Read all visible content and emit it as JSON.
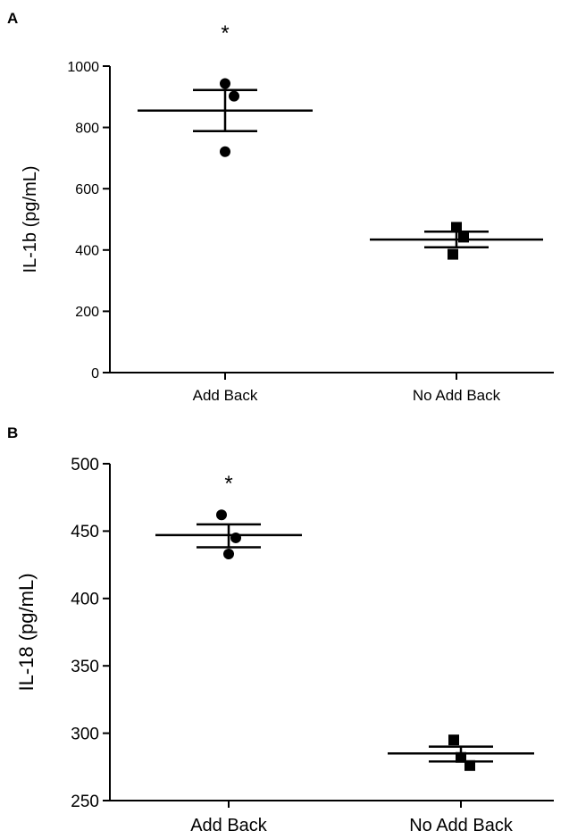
{
  "chart_data": [
    {
      "panel": "A",
      "type": "scatter",
      "categories": [
        "Add Back",
        "No Add Back"
      ],
      "ylabel": "IL-1b (pg/mL)",
      "ylim": [
        0,
        1000
      ],
      "yticks": [
        0,
        200,
        400,
        600,
        800,
        1000
      ],
      "series": [
        {
          "category": "Add Back",
          "marker": "circle",
          "points": [
            943,
            902,
            721
          ],
          "mean": 855,
          "sem_upper": 922,
          "sem_lower": 788
        },
        {
          "category": "No Add Back",
          "marker": "square",
          "points": [
            474,
            442,
            386
          ],
          "mean": 434,
          "sem_upper": 460,
          "sem_lower": 409
        }
      ],
      "annotations": [
        {
          "category": "Add Back",
          "text": "*"
        }
      ],
      "grid": false
    },
    {
      "panel": "B",
      "type": "scatter",
      "categories": [
        "Add Back",
        "No Add Back"
      ],
      "ylabel": "IL-18 (pg/mL)",
      "ylim": [
        250,
        500
      ],
      "yticks": [
        250,
        300,
        350,
        400,
        450,
        500
      ],
      "series": [
        {
          "category": "Add Back",
          "marker": "circle",
          "points": [
            462,
            445,
            433
          ],
          "mean": 447,
          "sem_upper": 455,
          "sem_lower": 438
        },
        {
          "category": "No Add Back",
          "marker": "square",
          "points": [
            295,
            282,
            276
          ],
          "mean": 285,
          "sem_upper": 290,
          "sem_lower": 279
        }
      ],
      "annotations": [
        {
          "category": "Add Back",
          "text": "*"
        }
      ],
      "grid": false
    }
  ]
}
